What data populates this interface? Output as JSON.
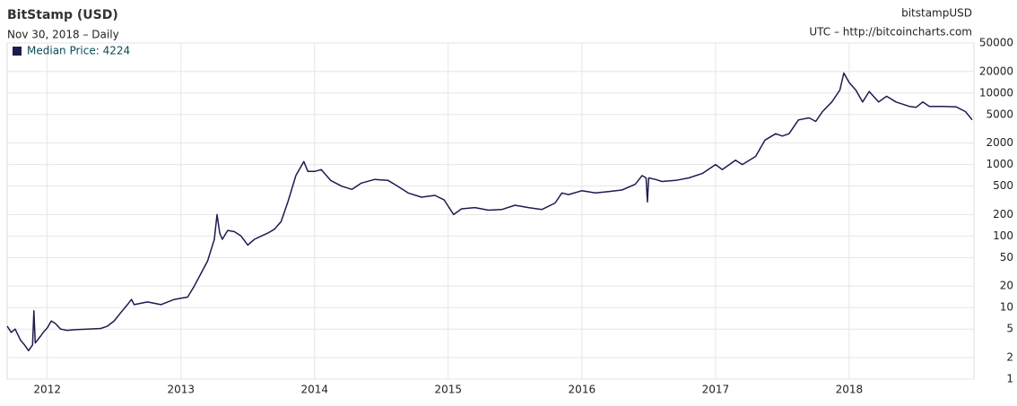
{
  "chart_data": {
    "type": "line",
    "title": "BitStamp (USD)",
    "subtitle": "Nov 30, 2018 – Daily",
    "symbol": "bitstampUSD",
    "source": "UTC – http://bitcoincharts.com",
    "yscale": "log",
    "grid": true,
    "legend": "top-left",
    "xlim": [
      2011.7,
      2018.92
    ],
    "xticks": [
      2012,
      2013,
      2014,
      2015,
      2016,
      2017,
      2018
    ],
    "ylim": [
      1,
      50000
    ],
    "yticks": [
      1,
      2,
      5,
      10,
      20,
      50,
      100,
      200,
      500,
      1000,
      2000,
      5000,
      10000,
      20000,
      50000
    ],
    "x": [
      2011.7,
      2011.73,
      2011.76,
      2011.8,
      2011.83,
      2011.86,
      2011.89,
      2011.9,
      2011.91,
      2011.95,
      2011.97,
      2012.0,
      2012.03,
      2012.06,
      2012.1,
      2012.15,
      2012.2,
      2012.3,
      2012.4,
      2012.45,
      2012.5,
      2012.55,
      2012.6,
      2012.63,
      2012.65,
      2012.7,
      2012.75,
      2012.85,
      2012.95,
      2013.0,
      2013.05,
      2013.1,
      2013.15,
      2013.2,
      2013.25,
      2013.27,
      2013.29,
      2013.31,
      2013.35,
      2013.4,
      2013.45,
      2013.5,
      2013.55,
      2013.6,
      2013.65,
      2013.7,
      2013.75,
      2013.8,
      2013.86,
      2013.92,
      2013.95,
      2014.0,
      2014.05,
      2014.12,
      2014.2,
      2014.28,
      2014.35,
      2014.45,
      2014.55,
      2014.62,
      2014.7,
      2014.8,
      2014.9,
      2014.97,
      2015.04,
      2015.1,
      2015.2,
      2015.3,
      2015.4,
      2015.5,
      2015.6,
      2015.7,
      2015.8,
      2015.85,
      2015.9,
      2016.0,
      2016.1,
      2016.2,
      2016.3,
      2016.4,
      2016.45,
      2016.48,
      2016.49,
      2016.5,
      2016.55,
      2016.6,
      2016.7,
      2016.8,
      2016.9,
      2017.0,
      2017.05,
      2017.15,
      2017.2,
      2017.3,
      2017.37,
      2017.45,
      2017.5,
      2017.55,
      2017.62,
      2017.7,
      2017.75,
      2017.8,
      2017.87,
      2017.93,
      2017.96,
      2018.0,
      2018.05,
      2018.1,
      2018.15,
      2018.22,
      2018.28,
      2018.35,
      2018.45,
      2018.5,
      2018.55,
      2018.6,
      2018.7,
      2018.8,
      2018.87,
      2018.92
    ],
    "series": [
      {
        "name": "Median Price: 4224",
        "color": "#1c1c50",
        "values": [
          5.5,
          4.5,
          5,
          3.5,
          3.0,
          2.5,
          3,
          9,
          3.2,
          4,
          4.5,
          5.2,
          6.5,
          6,
          5,
          4.8,
          4.9,
          5,
          5.1,
          5.5,
          6.5,
          8.5,
          11,
          13,
          11,
          11.5,
          12,
          11,
          13,
          13.5,
          14,
          20,
          30,
          45,
          90,
          200,
          110,
          90,
          120,
          115,
          100,
          75,
          90,
          100,
          110,
          125,
          160,
          300,
          700,
          1100,
          800,
          800,
          850,
          600,
          500,
          450,
          550,
          620,
          600,
          500,
          400,
          350,
          370,
          320,
          200,
          240,
          250,
          230,
          235,
          270,
          250,
          235,
          290,
          400,
          380,
          430,
          400,
          420,
          440,
          530,
          700,
          650,
          300,
          650,
          620,
          580,
          600,
          650,
          750,
          1000,
          850,
          1150,
          1000,
          1300,
          2200,
          2700,
          2500,
          2700,
          4200,
          4500,
          4000,
          5500,
          7500,
          11000,
          19000,
          14000,
          11000,
          7500,
          10500,
          7500,
          9000,
          7500,
          6500,
          6300,
          7500,
          6500,
          6500,
          6400,
          5500,
          4224
        ]
      }
    ]
  }
}
